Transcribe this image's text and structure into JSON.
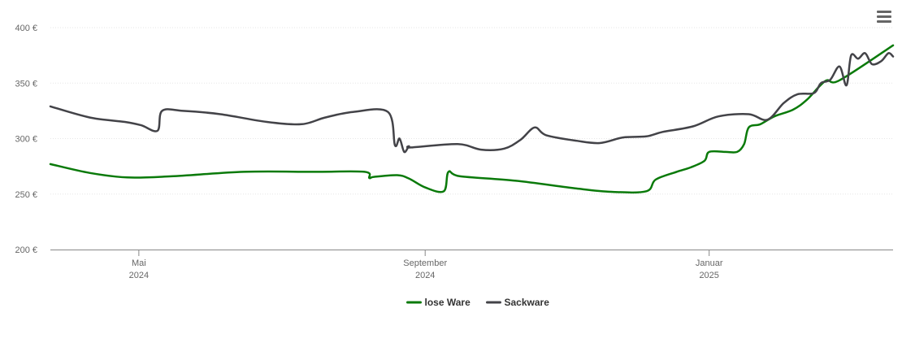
{
  "menu": {
    "icon": "hamburger-menu-icon"
  },
  "chart_data": {
    "type": "line",
    "title": "",
    "xlabel": "",
    "ylabel": "",
    "ylim": [
      200,
      400
    ],
    "xlim": [
      "2024-03-24",
      "2025-03-21"
    ],
    "grid": true,
    "legend": "bottom-center",
    "y_ticks": [
      {
        "value": 200,
        "label": "200 €"
      },
      {
        "value": 250,
        "label": "250 €"
      },
      {
        "value": 300,
        "label": "300 €"
      },
      {
        "value": 350,
        "label": "350 €"
      },
      {
        "value": 400,
        "label": "400 €"
      }
    ],
    "x_ticks": [
      {
        "date": "2024-05-01",
        "label": "Mai",
        "sublabel": "2024"
      },
      {
        "date": "2024-09-01",
        "label": "September",
        "sublabel": "2024"
      },
      {
        "date": "2025-01-01",
        "label": "Januar",
        "sublabel": "2025"
      }
    ],
    "series": [
      {
        "name": "lose Ware",
        "color": "#0a7a0a",
        "points": [
          [
            "2024-03-24",
            277
          ],
          [
            "2024-04-10",
            269
          ],
          [
            "2024-04-26",
            265
          ],
          [
            "2024-05-15",
            266
          ],
          [
            "2024-06-15",
            270
          ],
          [
            "2024-07-15",
            270
          ],
          [
            "2024-08-06",
            270
          ],
          [
            "2024-08-08",
            264.5
          ],
          [
            "2024-08-10",
            265.5
          ],
          [
            "2024-08-20",
            267
          ],
          [
            "2024-08-25",
            264
          ],
          [
            "2024-09-01",
            256
          ],
          [
            "2024-09-09",
            252.5
          ],
          [
            "2024-09-11",
            270
          ],
          [
            "2024-09-16",
            266
          ],
          [
            "2024-10-10",
            262
          ],
          [
            "2024-11-05",
            255
          ],
          [
            "2024-11-20",
            252
          ],
          [
            "2024-12-05",
            252.5
          ],
          [
            "2024-12-09",
            263
          ],
          [
            "2024-12-18",
            270
          ],
          [
            "2024-12-24",
            274
          ],
          [
            "2024-12-30",
            280
          ],
          [
            "2025-01-01",
            288
          ],
          [
            "2025-01-08",
            288
          ],
          [
            "2025-01-13",
            288
          ],
          [
            "2025-01-16",
            295
          ],
          [
            "2025-01-18",
            310
          ],
          [
            "2025-01-23",
            313
          ],
          [
            "2025-01-29",
            320
          ],
          [
            "2025-02-06",
            326
          ],
          [
            "2025-02-12",
            335
          ],
          [
            "2025-02-20",
            352
          ],
          [
            "2025-02-26",
            352.5
          ],
          [
            "2025-03-21",
            384
          ]
        ]
      },
      {
        "name": "Sackware",
        "color": "#434348",
        "points": [
          [
            "2024-03-24",
            329
          ],
          [
            "2024-04-10",
            319
          ],
          [
            "2024-04-25",
            315
          ],
          [
            "2024-05-02",
            312
          ],
          [
            "2024-05-09",
            307
          ],
          [
            "2024-05-11",
            325
          ],
          [
            "2024-05-20",
            325
          ],
          [
            "2024-06-05",
            322
          ],
          [
            "2024-06-25",
            315
          ],
          [
            "2024-07-10",
            313
          ],
          [
            "2024-07-20",
            319
          ],
          [
            "2024-08-01",
            324
          ],
          [
            "2024-08-16",
            324
          ],
          [
            "2024-08-19",
            294
          ],
          [
            "2024-08-21",
            300
          ],
          [
            "2024-08-23",
            288
          ],
          [
            "2024-08-25",
            293
          ],
          [
            "2024-08-26",
            292
          ],
          [
            "2024-09-15",
            295
          ],
          [
            "2024-09-25",
            290
          ],
          [
            "2024-10-05",
            291
          ],
          [
            "2024-10-12",
            299
          ],
          [
            "2024-10-18",
            310
          ],
          [
            "2024-10-23",
            303
          ],
          [
            "2024-11-05",
            298
          ],
          [
            "2024-11-15",
            296
          ],
          [
            "2024-11-25",
            301
          ],
          [
            "2024-12-05",
            302
          ],
          [
            "2024-12-12",
            306
          ],
          [
            "2024-12-25",
            311
          ],
          [
            "2025-01-05",
            320
          ],
          [
            "2025-01-18",
            322
          ],
          [
            "2025-01-26",
            317
          ],
          [
            "2025-02-02",
            332
          ],
          [
            "2025-02-08",
            340
          ],
          [
            "2025-02-15",
            341
          ],
          [
            "2025-02-18",
            350
          ],
          [
            "2025-02-22",
            353
          ],
          [
            "2025-02-26",
            365
          ],
          [
            "2025-03-01",
            348
          ],
          [
            "2025-03-03",
            375
          ],
          [
            "2025-03-06",
            372
          ],
          [
            "2025-03-09",
            377
          ],
          [
            "2025-03-12",
            367
          ],
          [
            "2025-03-16",
            370
          ],
          [
            "2025-03-19",
            377
          ],
          [
            "2025-03-21",
            374
          ]
        ]
      }
    ]
  }
}
